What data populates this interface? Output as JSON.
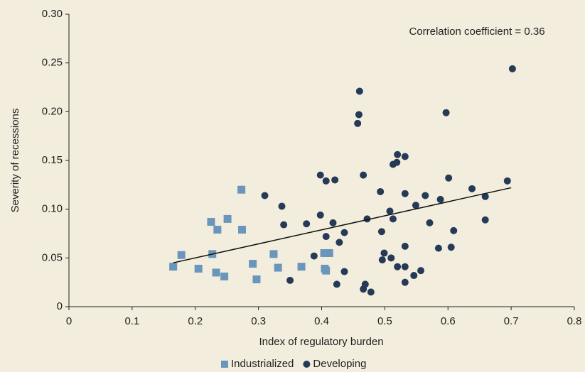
{
  "chart_data": {
    "type": "scatter",
    "annotation": "Correlation coefficient = 0.36",
    "x_label": "Index of regulatory burden",
    "y_label": "Severity of recessions",
    "xlim": [
      0,
      0.8
    ],
    "xticks": [
      0,
      0.1,
      0.2,
      0.3,
      0.4,
      0.5,
      0.6,
      0.7,
      0.8
    ],
    "ylim": [
      0,
      0.3
    ],
    "yticks": [
      0,
      0.05,
      {
        "value": 0.1,
        "label": "0.10"
      },
      0.15,
      {
        "value": 0.2,
        "label": "0.20"
      },
      0.25,
      {
        "value": 0.3,
        "label": "0.30"
      }
    ],
    "legend": "bottom",
    "series": [
      {
        "name": "Industrialized",
        "color": "#6b96bb",
        "marker": "square",
        "x": [
          0.165,
          0.178,
          0.205,
          0.225,
          0.227,
          0.235,
          0.233,
          0.246,
          0.251,
          0.273,
          0.274,
          0.291,
          0.297,
          0.324,
          0.331,
          0.368,
          0.404,
          0.412,
          0.405,
          0.407
        ],
        "values": [
          0.041,
          0.053,
          0.039,
          0.087,
          0.054,
          0.079,
          0.035,
          0.031,
          0.09,
          0.12,
          0.079,
          0.044,
          0.028,
          0.054,
          0.04,
          0.041,
          0.055,
          0.055,
          0.039,
          0.037
        ]
      },
      {
        "name": "Developing",
        "color": "#263a57",
        "marker": "circle",
        "x": [
          0.337,
          0.34,
          0.31,
          0.376,
          0.35,
          0.388,
          0.398,
          0.398,
          0.407,
          0.407,
          0.418,
          0.421,
          0.424,
          0.428,
          0.436,
          0.436,
          0.457,
          0.459,
          0.46,
          0.466,
          0.466,
          0.469,
          0.472,
          0.478,
          0.493,
          0.495,
          0.496,
          0.499,
          0.508,
          0.51,
          0.513,
          0.513,
          0.519,
          0.52,
          0.52,
          0.532,
          0.532,
          0.532,
          0.532,
          0.532,
          0.546,
          0.549,
          0.557,
          0.564,
          0.571,
          0.585,
          0.588,
          0.597,
          0.601,
          0.605,
          0.609,
          0.638,
          0.659,
          0.659,
          0.694,
          0.702
        ],
        "values": [
          0.103,
          0.084,
          0.114,
          0.085,
          0.027,
          0.052,
          0.135,
          0.094,
          0.129,
          0.072,
          0.086,
          0.13,
          0.023,
          0.066,
          0.076,
          0.036,
          0.188,
          0.197,
          0.221,
          0.135,
          0.018,
          0.023,
          0.09,
          0.015,
          0.118,
          0.077,
          0.048,
          0.055,
          0.098,
          0.05,
          0.09,
          0.146,
          0.148,
          0.156,
          0.041,
          0.154,
          0.116,
          0.062,
          0.041,
          0.025,
          0.032,
          0.104,
          0.037,
          0.114,
          0.086,
          0.06,
          0.11,
          0.199,
          0.132,
          0.061,
          0.078,
          0.121,
          0.113,
          0.089,
          0.129,
          0.244
        ]
      }
    ],
    "trendline": {
      "color": "#111111",
      "x": [
        0.165,
        0.7
      ],
      "values": [
        0.045,
        0.122
      ]
    }
  }
}
